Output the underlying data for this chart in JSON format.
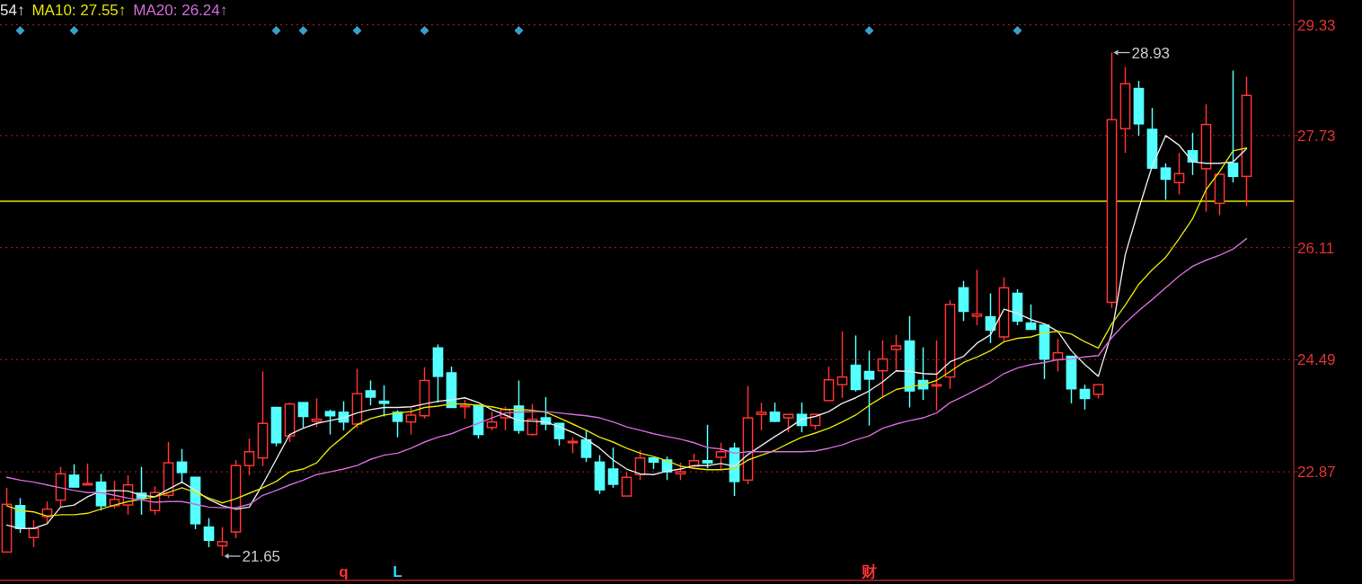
{
  "chart_data": {
    "type": "candlestick",
    "categories": [
      null,
      null,
      null,
      null,
      null,
      null,
      null,
      null,
      null,
      null,
      null,
      null,
      null,
      null,
      null,
      null,
      null,
      null,
      null,
      null,
      null,
      null,
      null,
      null,
      null,
      null,
      null,
      null,
      null,
      null,
      null,
      null,
      null,
      null,
      null,
      null,
      null,
      null,
      null,
      null,
      null,
      null,
      null,
      null,
      null,
      null,
      null,
      null,
      null,
      null,
      null,
      null,
      null,
      null,
      null,
      null,
      null,
      null,
      null,
      null,
      null,
      null,
      null,
      null,
      null,
      null,
      null,
      null,
      null,
      null,
      null,
      null,
      null,
      null,
      null,
      null,
      null,
      null,
      null,
      null,
      null,
      null,
      null,
      null,
      null,
      null,
      null,
      null,
      null,
      null,
      null,
      null,
      null
    ],
    "ohlc": [
      [
        21.71,
        22.64,
        21.71,
        22.4
      ],
      [
        22.38,
        22.49,
        21.99,
        22.05
      ],
      [
        21.92,
        22.17,
        21.78,
        22.05
      ],
      [
        22.22,
        22.44,
        22.12,
        22.33
      ],
      [
        22.46,
        22.94,
        22.36,
        22.84
      ],
      [
        22.82,
        22.98,
        22.65,
        22.65
      ],
      [
        22.68,
        22.99,
        22.68,
        22.7
      ],
      [
        22.72,
        22.84,
        22.31,
        22.38
      ],
      [
        22.38,
        22.74,
        22.34,
        22.47
      ],
      [
        22.39,
        22.82,
        22.25,
        22.68
      ],
      [
        22.56,
        22.94,
        22.25,
        22.49
      ],
      [
        22.31,
        22.66,
        22.25,
        22.57
      ],
      [
        22.53,
        23.3,
        22.49,
        23.0
      ],
      [
        23.01,
        23.2,
        22.7,
        22.86
      ],
      [
        22.79,
        22.79,
        22.04,
        22.12
      ],
      [
        22.07,
        22.2,
        21.78,
        21.88
      ],
      [
        21.8,
        22.07,
        21.65,
        21.86
      ],
      [
        22.0,
        23.04,
        21.91,
        22.96
      ],
      [
        22.96,
        23.35,
        22.82,
        23.16
      ],
      [
        23.07,
        24.32,
        22.95,
        23.57
      ],
      [
        23.8,
        23.8,
        23.24,
        23.29
      ],
      [
        23.39,
        23.87,
        23.3,
        23.85
      ],
      [
        23.87,
        23.87,
        23.51,
        23.67
      ],
      [
        23.6,
        23.93,
        23.52,
        23.63
      ],
      [
        23.74,
        23.77,
        23.41,
        23.68
      ],
      [
        23.73,
        23.89,
        23.47,
        23.59
      ],
      [
        23.56,
        24.36,
        23.5,
        24.0
      ],
      [
        24.04,
        24.19,
        23.83,
        23.95
      ],
      [
        23.89,
        24.12,
        23.67,
        23.86
      ],
      [
        23.73,
        23.76,
        23.37,
        23.6
      ],
      [
        23.59,
        23.8,
        23.41,
        23.69
      ],
      [
        23.68,
        24.38,
        23.64,
        24.19
      ],
      [
        24.66,
        24.71,
        23.87,
        24.25
      ],
      [
        24.3,
        24.39,
        23.8,
        23.8
      ],
      [
        23.81,
        23.91,
        23.64,
        23.83
      ],
      [
        23.83,
        23.83,
        23.35,
        23.41
      ],
      [
        23.51,
        23.74,
        23.47,
        23.59
      ],
      [
        23.65,
        23.81,
        23.47,
        23.77
      ],
      [
        23.82,
        24.19,
        23.42,
        23.47
      ],
      [
        23.41,
        23.85,
        23.39,
        23.63
      ],
      [
        23.65,
        23.95,
        23.47,
        23.56
      ],
      [
        23.57,
        23.57,
        23.25,
        23.35
      ],
      [
        23.29,
        23.37,
        23.14,
        23.31
      ],
      [
        23.33,
        23.48,
        23.01,
        23.08
      ],
      [
        23.01,
        23.11,
        22.55,
        22.61
      ],
      [
        22.91,
        23.22,
        22.64,
        22.69
      ],
      [
        22.52,
        22.86,
        22.52,
        22.79
      ],
      [
        22.83,
        23.18,
        22.75,
        23.07
      ],
      [
        23.07,
        23.07,
        22.91,
        23.01
      ],
      [
        23.04,
        23.09,
        22.75,
        22.87
      ],
      [
        22.84,
        23.0,
        22.75,
        22.87
      ],
      [
        22.95,
        23.13,
        22.92,
        23.03
      ],
      [
        23.03,
        23.55,
        22.92,
        23.0
      ],
      [
        23.08,
        23.29,
        22.91,
        23.16
      ],
      [
        23.21,
        23.29,
        22.52,
        22.73
      ],
      [
        22.75,
        24.11,
        22.69,
        23.65
      ],
      [
        23.7,
        23.87,
        23.47,
        23.73
      ],
      [
        23.73,
        23.87,
        23.59,
        23.6
      ],
      [
        23.65,
        23.7,
        23.44,
        23.7
      ],
      [
        23.7,
        23.87,
        23.44,
        23.54
      ],
      [
        23.54,
        23.7,
        23.48,
        23.7
      ],
      [
        23.9,
        24.39,
        23.9,
        24.2
      ],
      [
        24.13,
        24.9,
        23.94,
        24.24
      ],
      [
        24.41,
        24.84,
        24.03,
        24.06
      ],
      [
        24.32,
        24.62,
        23.54,
        24.21
      ],
      [
        24.33,
        24.77,
        23.96,
        24.5
      ],
      [
        24.64,
        24.85,
        24.33,
        24.69
      ],
      [
        24.76,
        25.12,
        23.8,
        24.04
      ],
      [
        24.19,
        24.67,
        23.91,
        24.07
      ],
      [
        24.11,
        24.77,
        23.76,
        24.13
      ],
      [
        24.24,
        25.35,
        24.07,
        25.29
      ],
      [
        25.53,
        25.63,
        25.05,
        25.19
      ],
      [
        25.12,
        25.79,
        24.99,
        25.15
      ],
      [
        25.11,
        25.45,
        24.73,
        24.92
      ],
      [
        24.82,
        25.68,
        24.76,
        25.53
      ],
      [
        25.45,
        25.51,
        24.99,
        25.05
      ],
      [
        25.02,
        25.29,
        24.93,
        24.93
      ],
      [
        24.99,
        24.99,
        24.21,
        24.5
      ],
      [
        24.49,
        24.79,
        24.32,
        24.59
      ],
      [
        24.54,
        24.54,
        23.86,
        24.07
      ],
      [
        24.06,
        24.13,
        23.77,
        23.93
      ],
      [
        23.99,
        24.13,
        23.93,
        24.13
      ],
      [
        25.32,
        28.93,
        25.24,
        27.96
      ],
      [
        27.83,
        28.72,
        27.48,
        28.48
      ],
      [
        28.41,
        28.52,
        27.73,
        27.9
      ],
      [
        27.82,
        28.13,
        27.26,
        27.26
      ],
      [
        27.26,
        27.33,
        26.8,
        27.1
      ],
      [
        27.05,
        27.48,
        26.88,
        27.18
      ],
      [
        27.51,
        27.77,
        27.16,
        27.35
      ],
      [
        27.25,
        28.18,
        26.63,
        27.89
      ],
      [
        26.75,
        27.17,
        26.58,
        27.17
      ],
      [
        27.33,
        28.67,
        27.05,
        27.14
      ],
      [
        27.14,
        28.58,
        26.71,
        28.31
      ]
    ],
    "colors": [
      "#ff3232",
      "#54ffff",
      "#ff3232",
      "#ff3232",
      "#ff3232",
      "#54ffff",
      "#ff3232",
      "#54ffff",
      "#ff3232",
      "#ff3232",
      "#54ffff",
      "#ff3232",
      "#ff3232",
      "#54ffff",
      "#54ffff",
      "#54ffff",
      "#ff3232",
      "#ff3232",
      "#ff3232",
      "#ff3232",
      "#54ffff",
      "#ff3232",
      "#54ffff",
      "#ff3232",
      "#54ffff",
      "#54ffff",
      "#ff3232",
      "#54ffff",
      "#54ffff",
      "#54ffff",
      "#ff3232",
      "#ff3232",
      "#54ffff",
      "#54ffff",
      "#ff3232",
      "#54ffff",
      "#ff3232",
      "#ff3232",
      "#54ffff",
      "#ff3232",
      "#54ffff",
      "#54ffff",
      "#ff3232",
      "#54ffff",
      "#54ffff",
      "#54ffff",
      "#ff3232",
      "#ff3232",
      "#54ffff",
      "#54ffff",
      "#ff3232",
      "#ff3232",
      "#54ffff",
      "#ff3232",
      "#54ffff",
      "#ff3232",
      "#ff3232",
      "#54ffff",
      "#ff3232",
      "#54ffff",
      "#ff3232",
      "#ff3232",
      "#ff3232",
      "#54ffff",
      "#54ffff",
      "#ff3232",
      "#ff3232",
      "#54ffff",
      "#54ffff",
      "#ff3232",
      "#ff3232",
      "#54ffff",
      "#ff3232",
      "#54ffff",
      "#ff3232",
      "#54ffff",
      "#54ffff",
      "#54ffff",
      "#ff3232",
      "#54ffff",
      "#54ffff",
      "#ff3232",
      "#ff3232",
      "#ff3232",
      "#54ffff",
      "#54ffff",
      "#54ffff",
      "#ff3232",
      "#54ffff",
      "#ff3232",
      "#ff3232",
      "#54ffff",
      "#ff3232"
    ],
    "ylim": [
      21.3,
      29.69
    ],
    "yticks": [
      22.87,
      24.49,
      26.11,
      27.73,
      29.33
    ],
    "grid": "y",
    "legend": "top left",
    "series": [
      {
        "name": "54↑",
        "type": "line",
        "color": "#e6e6e6",
        "values": [
          22.1,
          22.05,
          22.05,
          22.12,
          22.36,
          22.39,
          22.51,
          22.59,
          22.6,
          22.59,
          22.53,
          22.51,
          22.62,
          22.72,
          22.6,
          22.47,
          22.38,
          22.33,
          22.36,
          22.69,
          23.05,
          23.41,
          23.5,
          23.57,
          23.61,
          23.65,
          23.72,
          23.77,
          23.8,
          23.8,
          23.81,
          23.85,
          23.89,
          23.91,
          23.94,
          23.87,
          23.77,
          23.69,
          23.61,
          23.6,
          23.59,
          23.52,
          23.44,
          23.34,
          23.21,
          23.04,
          22.91,
          22.84,
          22.83,
          22.88,
          22.91,
          22.96,
          22.96,
          22.99,
          22.95,
          23.12,
          23.25,
          23.38,
          23.5,
          23.63,
          23.67,
          23.74,
          23.86,
          23.94,
          24.04,
          24.17,
          24.33,
          24.32,
          24.29,
          24.28,
          24.46,
          24.54,
          24.73,
          24.85,
          25.22,
          25.16,
          25.07,
          25.01,
          24.9,
          24.62,
          24.42,
          24.25,
          24.88,
          26.01,
          26.67,
          27.29,
          27.73,
          27.59,
          27.35,
          27.33,
          27.33,
          27.35,
          27.54
        ]
      },
      {
        "name": "MA10: 27.55↑",
        "type": "line",
        "color": "#e0e000",
        "values": [
          22.38,
          22.31,
          22.29,
          22.23,
          22.25,
          22.25,
          22.27,
          22.33,
          22.39,
          22.44,
          22.47,
          22.51,
          22.57,
          22.64,
          22.57,
          22.49,
          22.42,
          22.48,
          22.56,
          22.64,
          22.73,
          22.87,
          22.91,
          23.0,
          23.22,
          23.38,
          23.55,
          23.64,
          23.69,
          23.72,
          23.74,
          23.8,
          23.82,
          23.85,
          23.85,
          23.83,
          23.81,
          23.77,
          23.77,
          23.76,
          23.73,
          23.65,
          23.56,
          23.47,
          23.37,
          23.3,
          23.21,
          23.14,
          23.09,
          23.03,
          22.95,
          22.92,
          22.9,
          22.9,
          22.92,
          23.04,
          23.11,
          23.18,
          23.28,
          23.37,
          23.43,
          23.5,
          23.59,
          23.69,
          23.83,
          23.95,
          24.06,
          24.1,
          24.13,
          24.19,
          24.32,
          24.45,
          24.53,
          24.62,
          24.75,
          24.8,
          24.82,
          24.88,
          24.9,
          24.86,
          24.75,
          24.66,
          25.01,
          25.28,
          25.58,
          25.79,
          25.97,
          26.24,
          26.53,
          26.95,
          27.21,
          27.51,
          27.55
        ]
      },
      {
        "name": "MA20: 26.24↑",
        "type": "line",
        "color": "#d36ad6",
        "values": [
          22.79,
          22.75,
          22.72,
          22.68,
          22.64,
          22.6,
          22.57,
          22.57,
          22.53,
          22.49,
          22.46,
          22.43,
          22.44,
          22.44,
          22.4,
          22.36,
          22.35,
          22.35,
          22.4,
          22.53,
          22.6,
          22.68,
          22.75,
          22.83,
          22.87,
          22.91,
          22.96,
          23.05,
          23.11,
          23.14,
          23.21,
          23.3,
          23.37,
          23.42,
          23.5,
          23.57,
          23.65,
          23.72,
          23.73,
          23.74,
          23.74,
          23.72,
          23.7,
          23.68,
          23.65,
          23.59,
          23.52,
          23.47,
          23.42,
          23.38,
          23.34,
          23.29,
          23.22,
          23.2,
          23.14,
          23.16,
          23.16,
          23.16,
          23.16,
          23.16,
          23.17,
          23.21,
          23.26,
          23.33,
          23.39,
          23.5,
          23.56,
          23.61,
          23.65,
          23.72,
          23.87,
          23.96,
          24.06,
          24.16,
          24.29,
          24.37,
          24.42,
          24.45,
          24.49,
          24.5,
          24.53,
          24.55,
          24.81,
          25.02,
          25.2,
          25.36,
          25.53,
          25.7,
          25.84,
          25.93,
          26.0,
          26.09,
          26.24
        ]
      },
      {
        "type": "scatter",
        "color": "#3aa0c8",
        "marker": "diamond",
        "values": [
          null,
          29.25,
          null,
          null,
          null,
          29.25,
          null,
          null,
          null,
          null,
          null,
          null,
          null,
          null,
          null,
          null,
          null,
          null,
          null,
          null,
          29.25,
          null,
          29.25,
          null,
          null,
          null,
          29.25,
          null,
          null,
          null,
          null,
          29.25,
          null,
          null,
          null,
          null,
          null,
          null,
          29.25,
          null,
          null,
          null,
          null,
          null,
          null,
          null,
          null,
          null,
          null,
          null,
          null,
          null,
          null,
          null,
          null,
          null,
          null,
          null,
          null,
          null,
          null,
          null,
          null,
          null,
          29.25,
          null,
          null,
          null,
          null,
          null,
          null,
          null,
          null,
          null,
          null,
          29.25,
          null,
          null,
          null,
          null,
          null,
          null,
          null,
          null,
          null,
          null,
          null,
          null,
          null,
          null,
          null,
          null,
          null
        ]
      }
    ],
    "ref_lines": [
      {
        "axis": "y",
        "value": 26.78,
        "color": "#e6e600",
        "line_style": "solid"
      }
    ],
    "annotations": [
      "28.93",
      "21.65",
      "q",
      "L",
      "财"
    ]
  }
}
